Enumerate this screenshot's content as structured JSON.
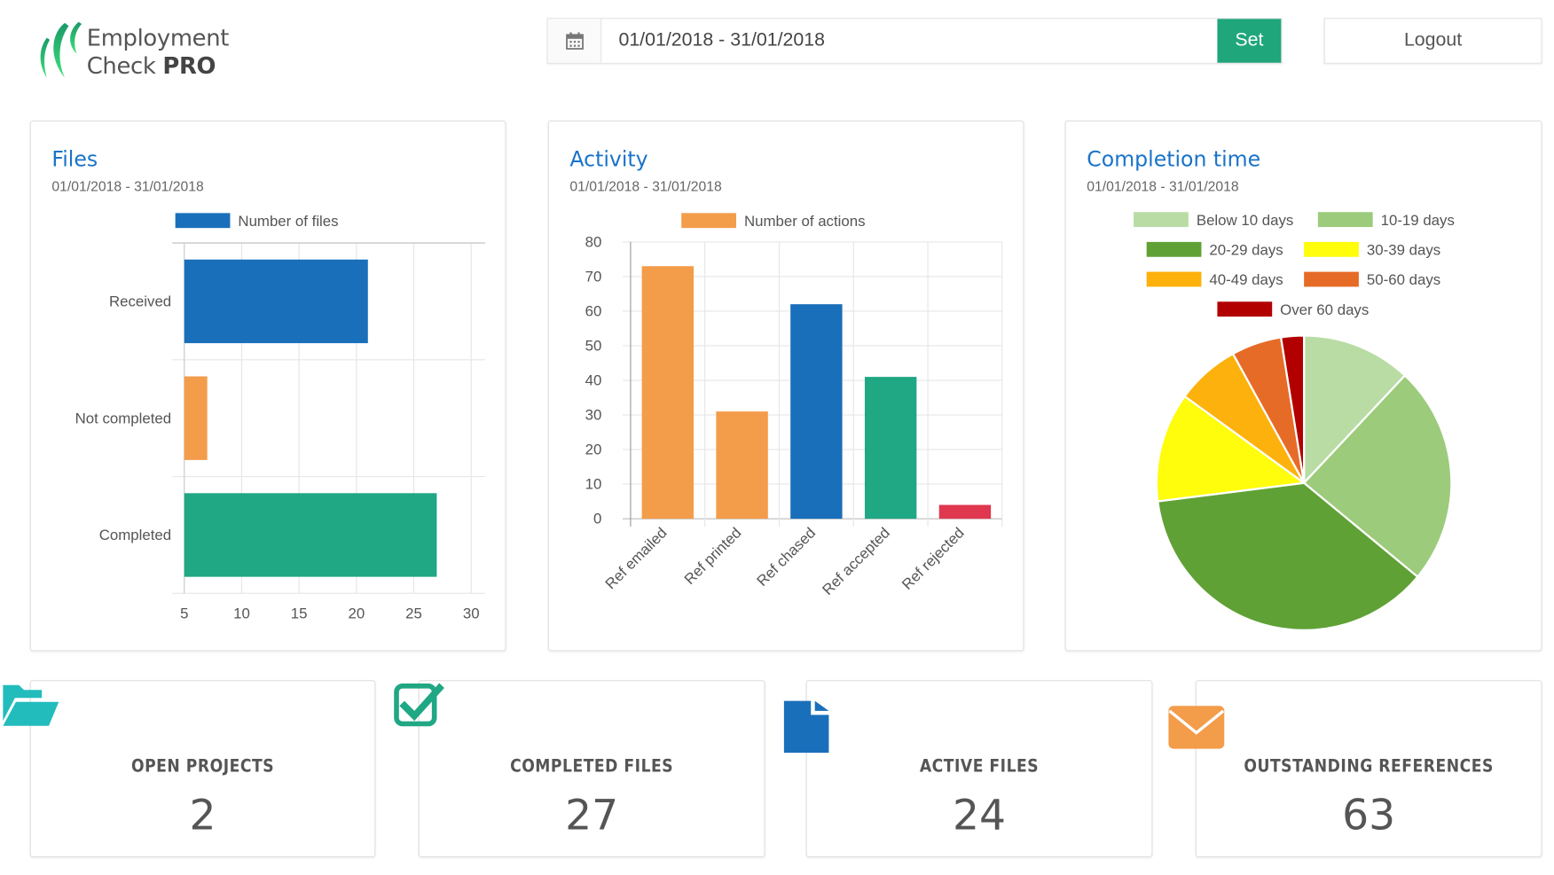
{
  "header": {
    "logo": {
      "line1": "Employment",
      "line2_a": "Check",
      "line2_b": "PRO"
    },
    "date_range": {
      "value": "01/01/2018 - 31/01/2018",
      "icon": "calendar-icon"
    },
    "set_label": "Set",
    "logout_label": "Logout"
  },
  "colors": {
    "brand_green": "#1fa67a",
    "title_blue": "#1a73c8"
  },
  "files": {
    "title": "Files",
    "date": "01/01/2018 - 31/01/2018"
  },
  "activity": {
    "title": "Activity",
    "date": "01/01/2018 - 31/01/2018"
  },
  "completion": {
    "title": "Completion time",
    "date": "01/01/2018 - 31/01/2018"
  },
  "chart_data": [
    {
      "type": "bar",
      "orientation": "horizontal",
      "categories": [
        "Received",
        "Not completed",
        "Completed"
      ],
      "series": [
        {
          "name": "Number of files",
          "values": [
            21,
            7,
            27
          ],
          "colors": [
            "#1a6fba",
            "#f39c4a",
            "#20a784"
          ]
        }
      ],
      "xlim": [
        5,
        30
      ],
      "xticks": [
        5,
        10,
        15,
        20,
        25,
        30
      ],
      "legend_color": "#1a6fba",
      "grid": true,
      "legend": "top"
    },
    {
      "type": "bar",
      "categories": [
        "Ref emailed",
        "Ref printed",
        "Ref chased",
        "Ref accepted",
        "Ref rejected"
      ],
      "series": [
        {
          "name": "Number of actions",
          "values": [
            73,
            31,
            62,
            41,
            4
          ],
          "colors": [
            "#f39c4a",
            "#f39c4a",
            "#1a6fba",
            "#20a784",
            "#e0384f"
          ]
        }
      ],
      "ylim": [
        0,
        80
      ],
      "yticks": [
        0,
        10,
        20,
        30,
        40,
        50,
        60,
        70,
        80
      ],
      "legend_color": "#f39c4a",
      "grid": true,
      "legend": "top"
    },
    {
      "type": "pie",
      "labels": [
        "Below 10 days",
        "10-19 days",
        "20-29 days",
        "30-39 days",
        "40-49 days",
        "50-60 days",
        "Over 60 days"
      ],
      "values": [
        12,
        24,
        37,
        12,
        7,
        5.5,
        2.5
      ],
      "colors": [
        "#b9dca4",
        "#9ccb7b",
        "#5fa135",
        "#fffc0c",
        "#fdb10c",
        "#e66b27",
        "#b20000"
      ],
      "legend": "top"
    }
  ],
  "stats": [
    {
      "label": "OPEN PROJECTS",
      "value": "2",
      "icon": "folder-open-icon",
      "color": "#22bcbd"
    },
    {
      "label": "COMPLETED FILES",
      "value": "27",
      "icon": "check-square-icon",
      "color": "#20a784"
    },
    {
      "label": "ACTIVE FILES",
      "value": "24",
      "icon": "file-icon",
      "color": "#1a6fba"
    },
    {
      "label": "OUTSTANDING REFERENCES",
      "value": "63",
      "icon": "envelope-icon",
      "color": "#f39c4a"
    }
  ]
}
